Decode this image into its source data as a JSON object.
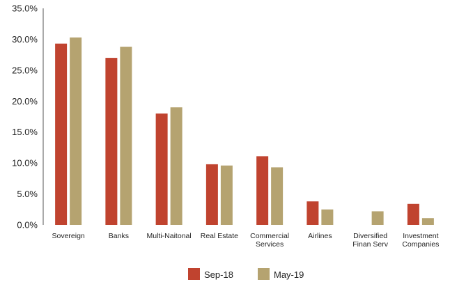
{
  "chart_data": {
    "type": "bar",
    "categories": [
      "Sovereign",
      "Banks",
      "Multi-Naitonal",
      "Real Estate",
      "Commercial Services",
      "Airlines",
      "Diversified Finan Serv",
      "Investment Companies"
    ],
    "category_lines": [
      [
        "Sovereign"
      ],
      [
        "Banks"
      ],
      [
        "Multi-Naitonal"
      ],
      [
        "Real Estate"
      ],
      [
        "Commercial",
        "Services"
      ],
      [
        "Airlines"
      ],
      [
        "Diversified",
        "Finan Serv"
      ],
      [
        "Investment",
        "Companies"
      ]
    ],
    "series": [
      {
        "name": "Sep-18",
        "color": "#c0432f",
        "values": [
          29.3,
          27.0,
          18.0,
          9.8,
          11.1,
          3.8,
          0.0,
          3.4
        ]
      },
      {
        "name": "May-19",
        "color": "#b5a370",
        "values": [
          30.3,
          28.8,
          19.0,
          9.6,
          9.3,
          2.5,
          2.2,
          1.1
        ]
      }
    ],
    "ylim": [
      0,
      35
    ],
    "y_ticks": [
      "0.0%",
      "5.0%",
      "10.0%",
      "15.0%",
      "20.0%",
      "25.0%",
      "30.0%",
      "35.0%"
    ],
    "y_tick_values": [
      0,
      5,
      10,
      15,
      20,
      25,
      30,
      35
    ],
    "title": "",
    "xlabel": "",
    "ylabel": "",
    "grid": false,
    "legend_position": "bottom-center"
  }
}
